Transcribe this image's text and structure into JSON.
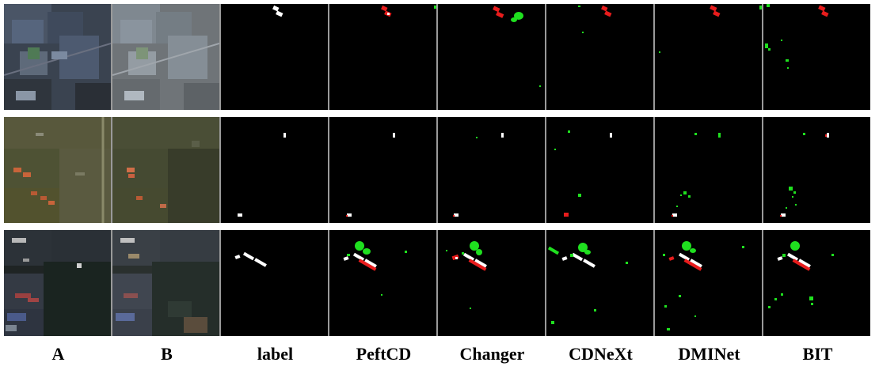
{
  "columns": [
    "A",
    "B",
    "label",
    "PeftCD",
    "Changer",
    "CDNeXt",
    "DMINet",
    "BIT"
  ],
  "colors": {
    "background": "#000000",
    "true_positive": "#ffffff",
    "false_positive": "#1fe01f",
    "false_negative": "#e81c1c",
    "separator": "#9a9a9a"
  }
}
